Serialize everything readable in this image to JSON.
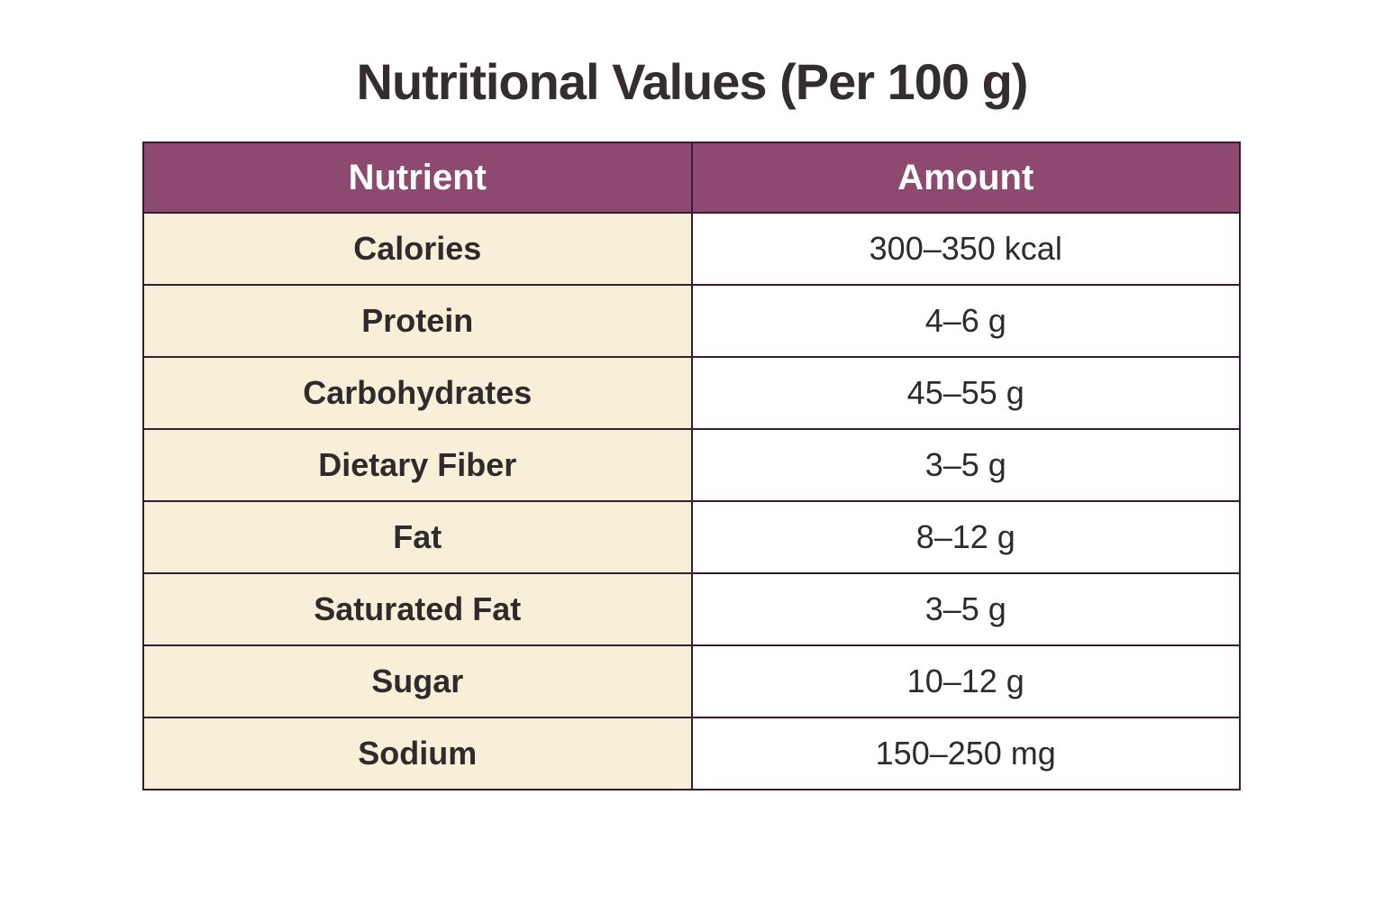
{
  "title": "Nutritional Values (Per 100 g)",
  "table": {
    "headers": [
      "Nutrient",
      "Amount"
    ]
  },
  "chart_data": {
    "type": "table",
    "title": "Nutritional Values (Per 100 g)",
    "columns": [
      "Nutrient",
      "Amount"
    ],
    "rows": [
      {
        "nutrient": "Calories",
        "amount": "300–350 kcal"
      },
      {
        "nutrient": "Protein",
        "amount": "4–6 g"
      },
      {
        "nutrient": "Carbohydrates",
        "amount": "45–55 g"
      },
      {
        "nutrient": "Dietary Fiber",
        "amount": "3–5 g"
      },
      {
        "nutrient": "Fat",
        "amount": "8–12 g"
      },
      {
        "nutrient": "Saturated Fat",
        "amount": "3–5 g"
      },
      {
        "nutrient": "Sugar",
        "amount": "10–12 g"
      },
      {
        "nutrient": "Sodium",
        "amount": "150–250 mg"
      }
    ]
  },
  "colors": {
    "page_bg": "#ffffff",
    "header_bg": "#8d4970",
    "nutrient_cell_bg": "#f7efd8",
    "amount_cell_bg": "#ffffff",
    "border": "#3a1b33",
    "header_text": "#ffffff",
    "body_text": "#2f2b2c",
    "title_text": "#332d2e"
  }
}
